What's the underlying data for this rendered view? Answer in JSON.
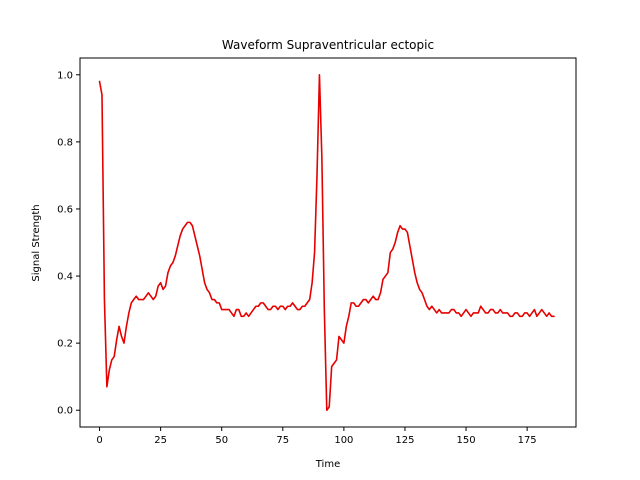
{
  "chart_data": {
    "type": "line",
    "title": "Waveform Supraventricular ectopic",
    "xlabel": "Time",
    "ylabel": "Signal Strength",
    "xlim": [
      -8,
      195
    ],
    "ylim": [
      -0.05,
      1.05
    ],
    "xticks": [
      0,
      25,
      50,
      75,
      100,
      125,
      150,
      175
    ],
    "yticks": [
      0.0,
      0.2,
      0.4,
      0.6,
      0.8,
      1.0
    ],
    "ytick_labels": [
      "0.0",
      "0.2",
      "0.4",
      "0.6",
      "0.8",
      "1.0"
    ],
    "grid": false,
    "series": [
      {
        "color": "#e60000",
        "x": [
          0,
          1,
          2,
          3,
          4,
          5,
          6,
          7,
          8,
          9,
          10,
          11,
          12,
          13,
          14,
          15,
          16,
          17,
          18,
          19,
          20,
          21,
          22,
          23,
          24,
          25,
          26,
          27,
          28,
          29,
          30,
          31,
          32,
          33,
          34,
          35,
          36,
          37,
          38,
          39,
          40,
          41,
          42,
          43,
          44,
          45,
          46,
          47,
          48,
          49,
          50,
          51,
          52,
          53,
          54,
          55,
          56,
          57,
          58,
          59,
          60,
          61,
          62,
          63,
          64,
          65,
          66,
          67,
          68,
          69,
          70,
          71,
          72,
          73,
          74,
          75,
          76,
          77,
          78,
          79,
          80,
          81,
          82,
          83,
          84,
          85,
          86,
          87,
          88,
          89,
          90,
          91,
          92,
          93,
          94,
          95,
          96,
          97,
          98,
          99,
          100,
          101,
          102,
          103,
          104,
          105,
          106,
          107,
          108,
          109,
          110,
          111,
          112,
          113,
          114,
          115,
          116,
          117,
          118,
          119,
          120,
          121,
          122,
          123,
          124,
          125,
          126,
          127,
          128,
          129,
          130,
          131,
          132,
          133,
          134,
          135,
          136,
          137,
          138,
          139,
          140,
          141,
          142,
          143,
          144,
          145,
          146,
          147,
          148,
          149,
          150,
          151,
          152,
          153,
          154,
          155,
          156,
          157,
          158,
          159,
          160,
          161,
          162,
          163,
          164,
          165,
          166,
          167,
          168,
          169,
          170,
          171,
          172,
          173,
          174,
          175,
          176,
          177,
          178,
          179,
          180,
          181,
          182,
          183,
          184,
          185,
          186
        ],
        "y": [
          0.98,
          0.94,
          0.33,
          0.07,
          0.12,
          0.15,
          0.16,
          0.21,
          0.25,
          0.22,
          0.2,
          0.25,
          0.29,
          0.32,
          0.33,
          0.34,
          0.33,
          0.33,
          0.33,
          0.34,
          0.35,
          0.34,
          0.33,
          0.34,
          0.37,
          0.38,
          0.36,
          0.37,
          0.41,
          0.43,
          0.44,
          0.46,
          0.49,
          0.52,
          0.54,
          0.55,
          0.56,
          0.56,
          0.55,
          0.52,
          0.49,
          0.46,
          0.42,
          0.38,
          0.36,
          0.35,
          0.33,
          0.33,
          0.32,
          0.32,
          0.3,
          0.3,
          0.3,
          0.3,
          0.29,
          0.28,
          0.3,
          0.3,
          0.28,
          0.28,
          0.29,
          0.28,
          0.29,
          0.3,
          0.31,
          0.31,
          0.32,
          0.32,
          0.31,
          0.3,
          0.3,
          0.31,
          0.31,
          0.3,
          0.31,
          0.31,
          0.3,
          0.31,
          0.31,
          0.32,
          0.31,
          0.3,
          0.3,
          0.31,
          0.31,
          0.32,
          0.33,
          0.38,
          0.47,
          0.7,
          1.0,
          0.75,
          0.3,
          0.0,
          0.01,
          0.13,
          0.14,
          0.15,
          0.22,
          0.21,
          0.2,
          0.25,
          0.28,
          0.32,
          0.32,
          0.31,
          0.31,
          0.32,
          0.33,
          0.33,
          0.32,
          0.33,
          0.34,
          0.33,
          0.33,
          0.35,
          0.39,
          0.4,
          0.41,
          0.47,
          0.48,
          0.5,
          0.53,
          0.55,
          0.54,
          0.54,
          0.53,
          0.49,
          0.45,
          0.41,
          0.38,
          0.36,
          0.35,
          0.33,
          0.31,
          0.3,
          0.31,
          0.3,
          0.29,
          0.3,
          0.29,
          0.29,
          0.29,
          0.29,
          0.3,
          0.3,
          0.29,
          0.29,
          0.28,
          0.29,
          0.3,
          0.29,
          0.28,
          0.29,
          0.29,
          0.29,
          0.31,
          0.3,
          0.29,
          0.29,
          0.3,
          0.3,
          0.29,
          0.29,
          0.3,
          0.29,
          0.29,
          0.29,
          0.28,
          0.28,
          0.29,
          0.29,
          0.28,
          0.28,
          0.29,
          0.29,
          0.28,
          0.29,
          0.3,
          0.28,
          0.29,
          0.3,
          0.29,
          0.28,
          0.29,
          0.28,
          0.28
        ]
      }
    ]
  }
}
